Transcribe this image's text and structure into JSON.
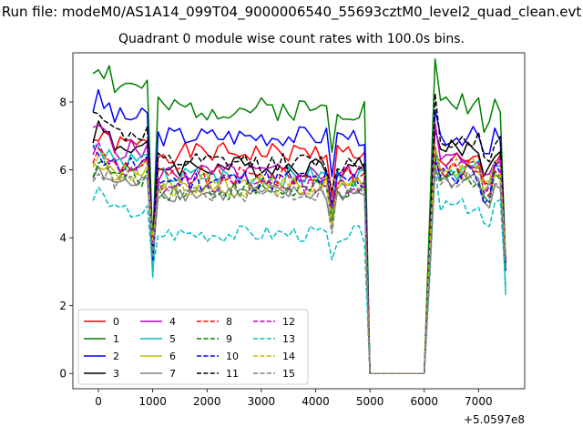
{
  "figure": {
    "title": "Run file: modeM0/AS1A14_099T04_9000006540_55693cztM0_level2_quad_clean.evt",
    "subtitle": "Quadrant 0 module wise count rates with 100.0s bins."
  },
  "chart_data": {
    "type": "line",
    "title": "Quadrant 0 module wise count rates with 100.0s bins.",
    "xlabel": "",
    "ylabel": "",
    "x_offset_label": "+5.0597e8",
    "xlim": [
      -470,
      7850
    ],
    "ylim": [
      -0.45,
      9.45
    ],
    "xticks": [
      0,
      1000,
      2000,
      3000,
      4000,
      5000,
      6000,
      7000
    ],
    "yticks": [
      0,
      2,
      4,
      6,
      8
    ],
    "grid": false,
    "legend": {
      "placement": "lower-left",
      "columns": 4
    },
    "x": [
      -100,
      0,
      100,
      200,
      300,
      400,
      500,
      600,
      700,
      800,
      900,
      1000,
      1100,
      1200,
      1300,
      1400,
      1500,
      1600,
      1700,
      1800,
      1900,
      2000,
      2100,
      2200,
      2300,
      2400,
      2500,
      2600,
      2700,
      2800,
      2900,
      3000,
      3100,
      3200,
      3300,
      3400,
      3500,
      3600,
      3700,
      3800,
      3900,
      4000,
      4100,
      4200,
      4300,
      4400,
      4500,
      4600,
      4700,
      4800,
      4900,
      5000,
      5100,
      5200,
      5300,
      5400,
      5500,
      5600,
      5700,
      5800,
      5900,
      6000,
      6100,
      6200,
      6300,
      6400,
      6500,
      6600,
      6700,
      6800,
      6900,
      7000,
      7100,
      7200,
      7300,
      7400,
      7500
    ],
    "gap_range": [
      4900,
      6100
    ],
    "series": [
      {
        "name": "0",
        "color": "#ff0000",
        "dash": "solid",
        "level": 6.5,
        "dip": 3.7,
        "early_amp": 0.45,
        "post_level": 6.2,
        "seed": 1,
        "noise": 0.3
      },
      {
        "name": "1",
        "color": "#008000",
        "dash": "solid",
        "level": 7.8,
        "dip": 3.8,
        "early_amp": 1.4,
        "post_level": 8.0,
        "seed": 2,
        "noise": 0.35
      },
      {
        "name": "2",
        "color": "#0000ff",
        "dash": "solid",
        "level": 7.0,
        "dip": 3.6,
        "early_amp": 1.1,
        "post_level": 7.0,
        "seed": 3,
        "noise": 0.3
      },
      {
        "name": "3",
        "color": "#000000",
        "dash": "solid",
        "level": 6.1,
        "dip": 3.5,
        "early_amp": 1.2,
        "post_level": 6.6,
        "seed": 4,
        "noise": 0.3
      },
      {
        "name": "4",
        "color": "#bf00bf",
        "dash": "solid",
        "level": 5.9,
        "dip": 3.6,
        "early_amp": 1.4,
        "post_level": 6.3,
        "seed": 5,
        "noise": 0.3
      },
      {
        "name": "5",
        "color": "#00bfbf",
        "dash": "solid",
        "level": 5.8,
        "dip": 2.7,
        "early_amp": 1.0,
        "post_level": 6.0,
        "seed": 6,
        "noise": 0.3
      },
      {
        "name": "6",
        "color": "#bfbf00",
        "dash": "solid",
        "level": 5.6,
        "dip": 3.4,
        "early_amp": 0.7,
        "post_level": 6.0,
        "seed": 7,
        "noise": 0.3
      },
      {
        "name": "7",
        "color": "#808080",
        "dash": "solid",
        "level": 5.3,
        "dip": 3.6,
        "early_amp": 0.6,
        "post_level": 5.7,
        "seed": 8,
        "noise": 0.25
      },
      {
        "name": "8",
        "color": "#ff0000",
        "dash": "dashed",
        "level": 5.8,
        "dip": 3.8,
        "early_amp": 0.7,
        "post_level": 6.0,
        "seed": 9,
        "noise": 0.3
      },
      {
        "name": "9",
        "color": "#008000",
        "dash": "dashed",
        "level": 5.4,
        "dip": 3.7,
        "early_amp": 0.8,
        "post_level": 5.8,
        "seed": 10,
        "noise": 0.3
      },
      {
        "name": "10",
        "color": "#0000ff",
        "dash": "dashed",
        "level": 5.7,
        "dip": 3.3,
        "early_amp": 0.9,
        "post_level": 5.9,
        "seed": 11,
        "noise": 0.35
      },
      {
        "name": "11",
        "color": "#000000",
        "dash": "dashed",
        "level": 6.2,
        "dip": 3.6,
        "early_amp": 1.7,
        "post_level": 6.9,
        "seed": 12,
        "noise": 0.3
      },
      {
        "name": "12",
        "color": "#bf00bf",
        "dash": "dashed",
        "level": 5.6,
        "dip": 3.6,
        "early_amp": 1.0,
        "post_level": 6.1,
        "seed": 13,
        "noise": 0.3
      },
      {
        "name": "13",
        "color": "#00bfbf",
        "dash": "dashed",
        "level": 4.1,
        "dip": 3.0,
        "early_amp": 1.3,
        "post_level": 4.9,
        "seed": 14,
        "noise": 0.25
      },
      {
        "name": "14",
        "color": "#bfbf00",
        "dash": "dashed",
        "level": 5.5,
        "dip": 3.8,
        "early_amp": 0.9,
        "post_level": 6.1,
        "seed": 15,
        "noise": 0.3
      },
      {
        "name": "15",
        "color": "#808080",
        "dash": "dashed",
        "level": 5.3,
        "dip": 3.6,
        "early_amp": 0.7,
        "post_level": 5.7,
        "seed": 16,
        "noise": 0.25
      }
    ]
  }
}
